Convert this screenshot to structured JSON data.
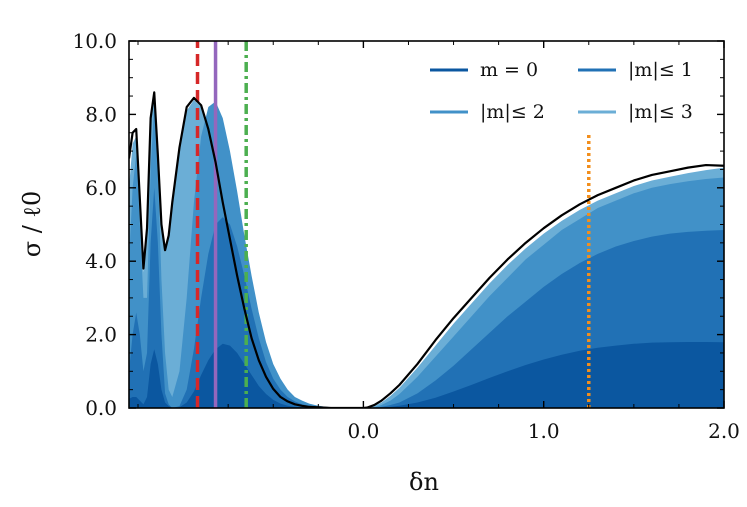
{
  "chart_data": {
    "type": "area",
    "title": "",
    "xlabel": "δn",
    "ylabel": "σ / ℓ0",
    "xlim": [
      -1.3,
      2.0
    ],
    "ylim": [
      0.0,
      10.0
    ],
    "x_ticks": [
      {
        "value": 0.0,
        "label": "0.0"
      },
      {
        "value": 1.0,
        "label": "1.0"
      },
      {
        "value": 2.0,
        "label": "2.0"
      }
    ],
    "y_ticks": [
      {
        "value": 0.0,
        "label": "0.0"
      },
      {
        "value": 2.0,
        "label": "2.0"
      },
      {
        "value": 4.0,
        "label": "4.0"
      },
      {
        "value": 6.0,
        "label": "6.0"
      },
      {
        "value": 8.0,
        "label": "8.0"
      },
      {
        "value": 10.0,
        "label": "10.0"
      }
    ],
    "grid": false,
    "legend_position": "top-right",
    "x": [
      -1.3,
      -1.28,
      -1.26,
      -1.24,
      -1.22,
      -1.2,
      -1.18,
      -1.16,
      -1.14,
      -1.12,
      -1.1,
      -1.08,
      -1.06,
      -1.02,
      -0.98,
      -0.94,
      -0.9,
      -0.86,
      -0.82,
      -0.78,
      -0.74,
      -0.7,
      -0.66,
      -0.62,
      -0.58,
      -0.54,
      -0.5,
      -0.46,
      -0.42,
      -0.38,
      -0.34,
      -0.3,
      -0.26,
      -0.22,
      -0.18,
      -0.14,
      -0.1,
      -0.06,
      -0.02,
      0.0,
      0.02,
      0.06,
      0.1,
      0.15,
      0.2,
      0.3,
      0.4,
      0.5,
      0.6,
      0.7,
      0.8,
      0.9,
      1.0,
      1.1,
      1.2,
      1.3,
      1.4,
      1.5,
      1.6,
      1.7,
      1.8,
      1.9,
      2.0
    ],
    "series": [
      {
        "name": "m = 0",
        "color": "#0b57a0",
        "values": [
          0.25,
          0.3,
          0.3,
          0.2,
          0.1,
          0.3,
          1.2,
          1.6,
          1.2,
          0.5,
          0.15,
          0.05,
          0.0,
          0.02,
          0.15,
          0.45,
          0.9,
          1.3,
          1.6,
          1.75,
          1.7,
          1.5,
          1.2,
          0.9,
          0.6,
          0.38,
          0.22,
          0.12,
          0.06,
          0.03,
          0.02,
          0.01,
          0.01,
          0.01,
          0.0,
          0.0,
          0.0,
          0.0,
          0.0,
          0.0,
          0.0,
          0.0,
          0.01,
          0.03,
          0.06,
          0.15,
          0.28,
          0.45,
          0.63,
          0.82,
          1.0,
          1.17,
          1.32,
          1.45,
          1.56,
          1.64,
          1.7,
          1.75,
          1.78,
          1.79,
          1.8,
          1.8,
          1.79
        ]
      },
      {
        "name": "|m|≤ 1",
        "color": "#2171b5",
        "values": [
          1.0,
          2.0,
          2.6,
          2.0,
          1.0,
          1.5,
          4.5,
          6.0,
          4.5,
          2.0,
          0.4,
          0.1,
          0.0,
          0.05,
          0.5,
          1.6,
          3.0,
          4.2,
          5.0,
          5.2,
          5.0,
          4.4,
          3.6,
          2.7,
          1.9,
          1.25,
          0.8,
          0.5,
          0.3,
          0.18,
          0.1,
          0.06,
          0.04,
          0.02,
          0.01,
          0.0,
          0.0,
          0.0,
          0.0,
          0.0,
          0.0,
          0.01,
          0.03,
          0.08,
          0.15,
          0.4,
          0.75,
          1.15,
          1.6,
          2.05,
          2.5,
          2.9,
          3.3,
          3.65,
          3.95,
          4.2,
          4.4,
          4.55,
          4.67,
          4.75,
          4.8,
          4.83,
          4.85
        ]
      },
      {
        "name": "|m|≤ 2",
        "color": "#4191c8",
        "values": [
          4.0,
          6.0,
          6.9,
          5.0,
          3.0,
          3.0,
          6.5,
          8.3,
          6.5,
          3.5,
          1.5,
          0.5,
          0.3,
          1.0,
          3.0,
          5.6,
          7.4,
          8.2,
          8.35,
          7.9,
          7.0,
          5.9,
          4.7,
          3.6,
          2.6,
          1.8,
          1.2,
          0.8,
          0.5,
          0.3,
          0.2,
          0.12,
          0.07,
          0.04,
          0.02,
          0.01,
          0.0,
          0.0,
          0.0,
          0.0,
          0.0,
          0.02,
          0.08,
          0.2,
          0.38,
          0.85,
          1.4,
          1.95,
          2.5,
          3.05,
          3.55,
          4.05,
          4.45,
          4.85,
          5.15,
          5.45,
          5.65,
          5.85,
          6.0,
          6.1,
          6.18,
          6.24,
          6.28
        ]
      },
      {
        "name": "|m|≤ 3",
        "color": "#6baed6",
        "values": [
          6.0,
          7.2,
          7.4,
          5.5,
          3.7,
          4.8,
          7.8,
          8.55,
          6.8,
          5.0,
          4.25,
          4.6,
          5.5,
          7.0,
          8.1,
          8.4,
          8.2,
          7.5,
          6.5,
          5.4,
          4.3,
          3.3,
          2.4,
          1.7,
          1.15,
          0.75,
          0.45,
          0.28,
          0.17,
          0.1,
          0.06,
          0.03,
          0.02,
          0.01,
          0.0,
          0.0,
          0.0,
          0.0,
          0.0,
          0.0,
          0.0,
          0.05,
          0.15,
          0.33,
          0.55,
          1.1,
          1.7,
          2.3,
          2.85,
          3.4,
          3.9,
          4.35,
          4.75,
          5.1,
          5.4,
          5.65,
          5.85,
          6.05,
          6.2,
          6.3,
          6.4,
          6.48,
          6.55
        ]
      }
    ],
    "total_curve": {
      "color": "#000000",
      "values": [
        6.8,
        7.5,
        7.6,
        5.7,
        3.8,
        4.9,
        7.9,
        8.6,
        6.9,
        5.0,
        4.3,
        4.7,
        5.6,
        7.1,
        8.2,
        8.45,
        8.25,
        7.6,
        6.7,
        5.6,
        4.6,
        3.6,
        2.7,
        1.9,
        1.3,
        0.85,
        0.52,
        0.3,
        0.18,
        0.1,
        0.06,
        0.03,
        0.02,
        0.01,
        0.0,
        0.0,
        0.0,
        0.0,
        0.0,
        0.0,
        0.01,
        0.08,
        0.2,
        0.4,
        0.63,
        1.2,
        1.85,
        2.45,
        3.0,
        3.55,
        4.05,
        4.5,
        4.9,
        5.25,
        5.55,
        5.8,
        6.0,
        6.2,
        6.35,
        6.45,
        6.55,
        6.62,
        6.6
      ]
    },
    "vertical_lines": [
      {
        "x": -0.92,
        "color": "#d62728",
        "style": "dashed",
        "y_top": 10.0
      },
      {
        "x": -0.82,
        "color": "#9467bd",
        "style": "solid",
        "y_top": 10.0
      },
      {
        "x": -0.65,
        "color": "#4caf50",
        "style": "dashdot",
        "y_top": 10.0
      },
      {
        "x": 1.25,
        "color": "#f28e1c",
        "style": "dotted",
        "y_top": 7.5
      }
    ]
  }
}
